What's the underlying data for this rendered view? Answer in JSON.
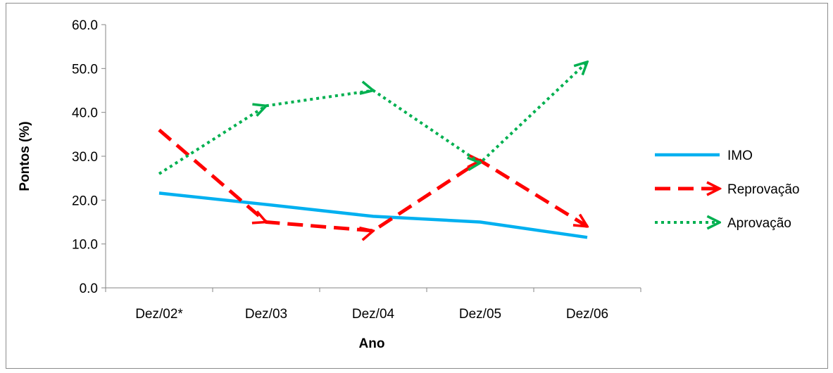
{
  "chart_data": {
    "type": "line",
    "categories": [
      "Dez/02*",
      "Dez/03",
      "Dez/04",
      "Dez/05",
      "Dez/06"
    ],
    "xlabel": "Ano",
    "ylabel": "Pontos (%)",
    "ylim": [
      0,
      60
    ],
    "yticks": [
      "0.0",
      "10.0",
      "20.0",
      "30.0",
      "40.0",
      "50.0",
      "60.0"
    ],
    "grid": false,
    "legend_position": "right",
    "series": [
      {
        "name": "IMO",
        "values": [
          21.6,
          19.0,
          16.3,
          15.0,
          11.5
        ],
        "color": "#00b0f0",
        "style": "solid"
      },
      {
        "name": "Reprovação",
        "values": [
          36.0,
          15.0,
          13.0,
          29.0,
          14.0
        ],
        "color": "#ff0000",
        "style": "dashed-arrow"
      },
      {
        "name": "Aprovação",
        "values": [
          26.0,
          41.5,
          45.0,
          28.5,
          51.5
        ],
        "color": "#00b050",
        "style": "dotted-arrow"
      }
    ]
  }
}
